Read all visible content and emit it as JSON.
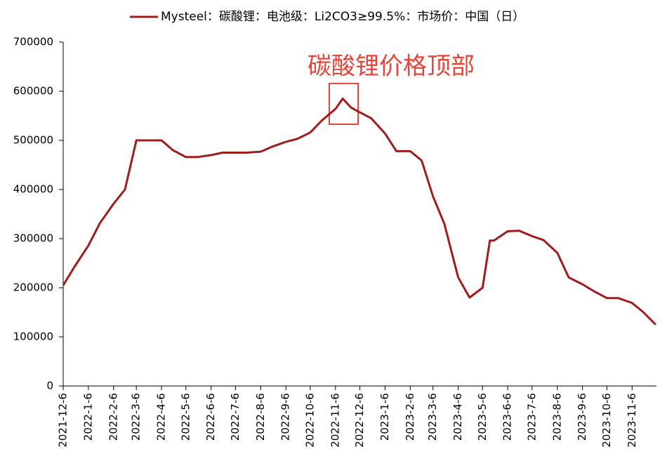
{
  "chart_data": {
    "type": "line",
    "legend": "Mysteel：碳酸锂：电池级：Li2CO3≥99.5%：市场价：中国（日）",
    "annotation": "碳酸锂价格顶部",
    "x": [
      "2021-12-6",
      "2021-12-20",
      "2022-1-6",
      "2022-1-20",
      "2022-2-6",
      "2022-2-20",
      "2022-3-6",
      "2022-3-20",
      "2022-4-6",
      "2022-4-20",
      "2022-5-6",
      "2022-5-20",
      "2022-6-6",
      "2022-6-20",
      "2022-7-6",
      "2022-7-20",
      "2022-8-6",
      "2022-8-20",
      "2022-9-6",
      "2022-9-20",
      "2022-10-6",
      "2022-10-20",
      "2022-11-6",
      "2022-11-15",
      "2022-11-25",
      "2022-12-6",
      "2022-12-20",
      "2023-1-6",
      "2023-1-20",
      "2023-2-6",
      "2023-2-20",
      "2023-3-6",
      "2023-3-20",
      "2023-4-6",
      "2023-4-20",
      "2023-5-6",
      "2023-5-15",
      "2023-5-20",
      "2023-6-6",
      "2023-6-20",
      "2023-7-6",
      "2023-7-20",
      "2023-8-6",
      "2023-8-20",
      "2023-9-6",
      "2023-9-20",
      "2023-10-6",
      "2023-10-20",
      "2023-11-6",
      "2023-11-20",
      "2023-12-5"
    ],
    "series": [
      {
        "name": "Mysteel：碳酸锂：电池级：Li2CO3≥99.5%：市场价：中国（日）",
        "color": "#a01c1c",
        "values": [
          205000,
          243000,
          286000,
          331000,
          371000,
          400000,
          500000,
          500000,
          500000,
          480000,
          466000,
          466000,
          470000,
          475000,
          475000,
          475000,
          477000,
          487000,
          497000,
          503000,
          516000,
          540000,
          564000,
          585000,
          567000,
          557000,
          545000,
          514000,
          478000,
          478000,
          459000,
          386000,
          330000,
          221000,
          180000,
          200000,
          296000,
          296000,
          315000,
          316000,
          305000,
          297000,
          271000,
          221000,
          207000,
          193000,
          179000,
          179000,
          169000,
          150000,
          125000
        ]
      }
    ],
    "xlim": [
      "2021-12-6",
      "2023-12-6"
    ],
    "xticks": [
      "2021-12-6",
      "2022-1-6",
      "2022-2-6",
      "2022-3-6",
      "2022-4-6",
      "2022-5-6",
      "2022-6-6",
      "2022-7-6",
      "2022-8-6",
      "2022-9-6",
      "2022-10-6",
      "2022-11-6",
      "2022-12-6",
      "2023-1-6",
      "2023-2-6",
      "2023-3-6",
      "2023-4-6",
      "2023-5-6",
      "2023-6-6",
      "2023-7-6",
      "2023-8-6",
      "2023-9-6",
      "2023-10-6",
      "2023-11-6"
    ],
    "ylim": [
      0,
      700000
    ],
    "yticks": [
      0,
      100000,
      200000,
      300000,
      400000,
      500000,
      600000,
      700000
    ]
  }
}
